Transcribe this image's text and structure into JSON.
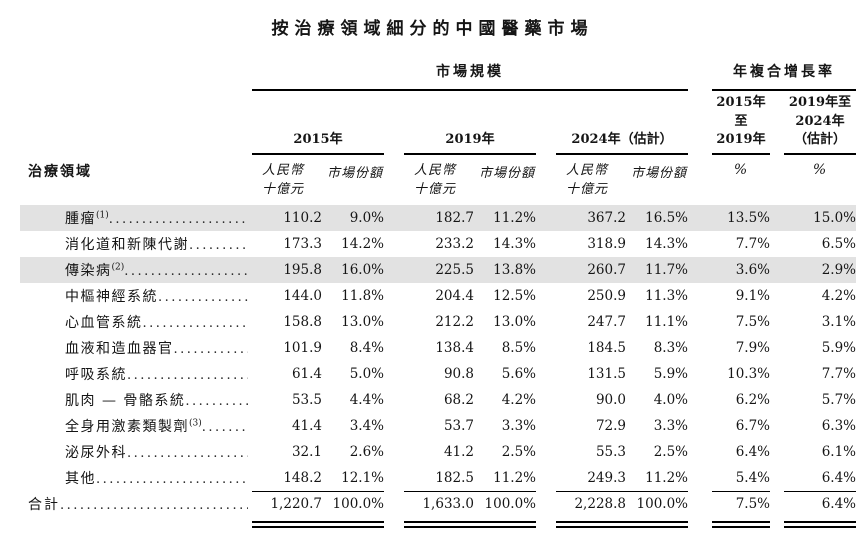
{
  "title": "按治療領域細分的中國醫藥市場",
  "table": {
    "row_header": "治療領域",
    "group_market_size": "市場規模",
    "group_cagr": "年複合增長率",
    "period_2015": "2015年",
    "period_2019": "2019年",
    "period_2024": "2024年（估計）",
    "cagr_period_1_line1": "2015年至",
    "cagr_period_1_line2": "2019年",
    "cagr_period_2_line1": "2019年至",
    "cagr_period_2_line2": "2024年",
    "cagr_period_2_line3": "（估計）",
    "unit_rmb_line1": "人民幣",
    "unit_rmb_line2": "十億元",
    "unit_share": "市場份額",
    "unit_pct": "%",
    "highlight_color": "#e2e2e2",
    "rows": [
      {
        "label": "腫瘤",
        "footnote": "(1)",
        "highlight": true,
        "values": [
          "110.2",
          "9.0%",
          "182.7",
          "11.2%",
          "367.2",
          "16.5%",
          "13.5%",
          "15.0%"
        ]
      },
      {
        "label": "消化道和新陳代謝",
        "footnote": "",
        "highlight": false,
        "values": [
          "173.3",
          "14.2%",
          "233.2",
          "14.3%",
          "318.9",
          "14.3%",
          "7.7%",
          "6.5%"
        ]
      },
      {
        "label": "傳染病",
        "footnote": "(2)",
        "highlight": true,
        "values": [
          "195.8",
          "16.0%",
          "225.5",
          "13.8%",
          "260.7",
          "11.7%",
          "3.6%",
          "2.9%"
        ]
      },
      {
        "label": "中樞神經系統",
        "footnote": "",
        "highlight": false,
        "values": [
          "144.0",
          "11.8%",
          "204.4",
          "12.5%",
          "250.9",
          "11.3%",
          "9.1%",
          "4.2%"
        ]
      },
      {
        "label": "心血管系統",
        "footnote": "",
        "highlight": false,
        "values": [
          "158.8",
          "13.0%",
          "212.2",
          "13.0%",
          "247.7",
          "11.1%",
          "7.5%",
          "3.1%"
        ]
      },
      {
        "label": "血液和造血器官",
        "footnote": "",
        "highlight": false,
        "values": [
          "101.9",
          "8.4%",
          "138.4",
          "8.5%",
          "184.5",
          "8.3%",
          "7.9%",
          "5.9%"
        ]
      },
      {
        "label": "呼吸系統",
        "footnote": "",
        "highlight": false,
        "values": [
          "61.4",
          "5.0%",
          "90.8",
          "5.6%",
          "131.5",
          "5.9%",
          "10.3%",
          "7.7%"
        ]
      },
      {
        "label": "肌肉 — 骨骼系統",
        "footnote": "",
        "highlight": false,
        "values": [
          "53.5",
          "4.4%",
          "68.2",
          "4.2%",
          "90.0",
          "4.0%",
          "6.2%",
          "5.7%"
        ]
      },
      {
        "label": "全身用激素類製劑",
        "footnote": "(3)",
        "highlight": false,
        "values": [
          "41.4",
          "3.4%",
          "53.7",
          "3.3%",
          "72.9",
          "3.3%",
          "6.7%",
          "6.3%"
        ]
      },
      {
        "label": "泌尿外科",
        "footnote": "",
        "highlight": false,
        "values": [
          "32.1",
          "2.6%",
          "41.2",
          "2.5%",
          "55.3",
          "2.5%",
          "6.4%",
          "6.1%"
        ]
      },
      {
        "label": "其他",
        "footnote": "",
        "highlight": false,
        "values": [
          "148.2",
          "12.1%",
          "182.5",
          "11.2%",
          "249.3",
          "11.2%",
          "5.4%",
          "6.4%"
        ]
      }
    ],
    "total": {
      "label": "合計",
      "footnote": "",
      "values": [
        "1,220.7",
        "100.0%",
        "1,633.0",
        "100.0%",
        "2,228.8",
        "100.0%",
        "7.5%",
        "6.4%"
      ]
    }
  }
}
